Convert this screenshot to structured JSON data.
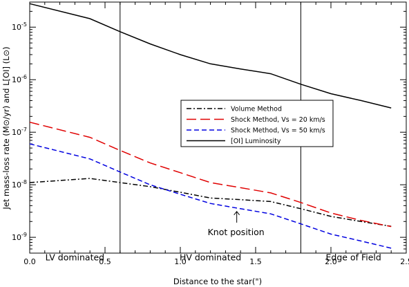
{
  "chart_data": {
    "type": "line",
    "xlabel": "Distance to the star(\")",
    "ylabel": "Jet mass-loss rate (M⊙/yr) and L[OI] (L⊙)",
    "xlim": [
      0.0,
      2.5
    ],
    "ylim": [
      5e-10,
      3e-05
    ],
    "yscale": "log",
    "x_ticks": [
      "0.0",
      "0.5",
      "1.0",
      "1.5",
      "2.0",
      "2.5"
    ],
    "y_ticks": [
      {
        "base": "10",
        "exp": "-9"
      },
      {
        "base": "10",
        "exp": "-8"
      },
      {
        "base": "10",
        "exp": "-7"
      },
      {
        "base": "10",
        "exp": "-6"
      },
      {
        "base": "10",
        "exp": "-5"
      }
    ],
    "grid": false,
    "legend_position": "center-right",
    "vertical_lines": [
      0.6,
      1.8
    ],
    "series": [
      {
        "name": "Volume Method",
        "color": "#000000",
        "dash": "dash-dot",
        "x": [
          0.0,
          0.4,
          0.6,
          0.8,
          1.0,
          1.2,
          1.4,
          1.6,
          1.8,
          2.0,
          2.2,
          2.4
        ],
        "y": [
          1.1e-08,
          1.32e-08,
          1.1e-08,
          9.2e-09,
          7.2e-09,
          5.6e-09,
          5.2e-09,
          4.8e-09,
          3.5e-09,
          2.5e-09,
          2e-09,
          1.62e-09
        ]
      },
      {
        "name": "Shock Method, Vs = 20 km/s",
        "color": "#e00000",
        "dash": "long-dash",
        "x": [
          0.0,
          0.4,
          0.6,
          0.8,
          1.0,
          1.2,
          1.4,
          1.6,
          1.8,
          2.0,
          2.2,
          2.4
        ],
        "y": [
          1.55e-07,
          8e-08,
          4.5e-08,
          2.6e-08,
          1.7e-08,
          1.1e-08,
          8.8e-09,
          7e-09,
          4.6e-09,
          2.9e-09,
          2.1e-09,
          1.6e-09
        ]
      },
      {
        "name": "Shock Method, Vs = 50 km/s",
        "color": "#0000e0",
        "dash": "short-dash",
        "x": [
          0.0,
          0.4,
          0.6,
          0.8,
          1.0,
          1.2,
          1.4,
          1.6,
          1.8,
          2.0,
          2.2,
          2.4
        ],
        "y": [
          6e-08,
          3.1e-08,
          1.75e-08,
          1e-08,
          6.6e-09,
          4.4e-09,
          3.5e-09,
          2.8e-09,
          1.8e-09,
          1.15e-09,
          8.5e-10,
          6.2e-10
        ]
      },
      {
        "name": "[OI] Luminosity",
        "color": "#000000",
        "dash": "solid",
        "x": [
          0.0,
          0.4,
          0.6,
          0.8,
          1.0,
          1.2,
          1.4,
          1.6,
          1.8,
          2.0,
          2.2,
          2.4
        ],
        "y": [
          2.8e-05,
          1.45e-05,
          8.2e-06,
          4.8e-06,
          3e-06,
          2e-06,
          1.6e-06,
          1.3e-06,
          8.2e-07,
          5.4e-07,
          4e-07,
          2.9e-07
        ]
      }
    ],
    "annotations": [
      {
        "text": "Knot position",
        "x": 1.37,
        "y": 1.25e-09,
        "arrow_from": 1.9e-09,
        "arrow_to": 3.1e-09
      },
      {
        "text": "LV dominated",
        "x": 0.3,
        "y": 4.1e-10
      },
      {
        "text": "HV dominated",
        "x": 1.2,
        "y": 4.1e-10
      },
      {
        "text": "Edge of Field",
        "x": 2.15,
        "y": 4.1e-10
      }
    ]
  }
}
